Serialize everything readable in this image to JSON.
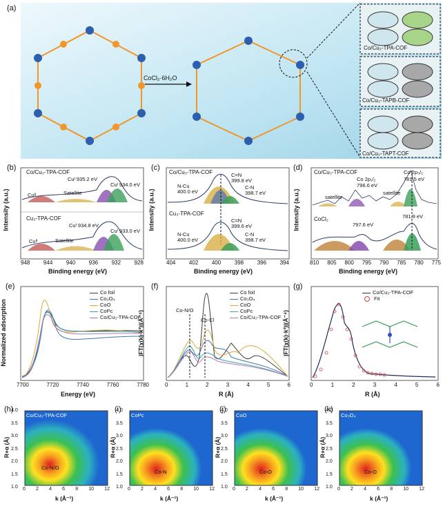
{
  "panels": {
    "a": {
      "letter": "(a)",
      "reagent": "CoCl₂·6H₂O",
      "insets": [
        "Co/Cu₃-TPA-COF",
        "Co/Cu₃-TAPB-COF",
        "Co/Cu₃-TAPT-COF"
      ]
    },
    "b": {
      "letter": "(b)",
      "xlabel": "Binding energy (eV)",
      "ylabel": "Intensity (a.u.)",
      "xticks": [
        "948",
        "944",
        "940",
        "936",
        "932",
        "928"
      ],
      "top": {
        "name": "Co/Cu₃-TPA-COF",
        "cu1": "Cuᴵ 935.2 eV",
        "cu2": "Cuᴵ 934.0 eV",
        "cu3": "Cuᴵᴵ",
        "sat": "Satellite"
      },
      "bottom": {
        "name": "Cu₃-TPA-COF",
        "cu1": "Cuᴵ 934.8 eV",
        "cu2": "Cuᴵ 933.0 eV",
        "cu3": "Cuᴵᴵ",
        "sat": "Satellite"
      }
    },
    "c": {
      "letter": "(c)",
      "xlabel": "Binding energy (eV)",
      "ylabel": "Intensity (a.u.)",
      "xticks": [
        "404",
        "402",
        "400",
        "398",
        "396",
        "394"
      ],
      "top": {
        "name": "Co/Cu₃-TPA-COF",
        "cn1": "C=N",
        "cn1v": "399.8 eV",
        "ncu": "N-Cu",
        "ncuv": "400.0 eV",
        "cn2": "C-N",
        "cn2v": "398.7 eV"
      },
      "bottom": {
        "name": "Cu₃-TPA-COF",
        "cn1": "C=N",
        "cn1v": "399.6 eV",
        "ncu": "N-Cu",
        "ncuv": "400.0 eV",
        "cn2": "C-N",
        "cn2v": "398.7 eV"
      }
    },
    "d": {
      "letter": "(d)",
      "xlabel": "Binding energy (eV)",
      "ylabel": "Intensity (a.u.)",
      "xticks": [
        "810",
        "805",
        "800",
        "795",
        "790",
        "785",
        "780",
        "775"
      ],
      "top": {
        "name": "Co/Cu₃-TPA-COF",
        "co12": "Co 2p₁/₂",
        "co12v": "796.6 eV",
        "co32": "Co 2p₃/₂",
        "co32v": "781.5 eV",
        "sat1": "satellite",
        "sat2": "satellite"
      },
      "bottom": {
        "name": "CoCl₂",
        "v1": "797.6 eV",
        "v2": "781.9 eV"
      }
    },
    "e": {
      "letter": "(e)",
      "xlabel": "Energy (eV)",
      "ylabel": "Normalized adsorption",
      "xticks": [
        "7700",
        "7720",
        "7740",
        "7760",
        "7780"
      ],
      "legend": [
        {
          "name": "Co foil",
          "color": "#3a3a3a"
        },
        {
          "name": "Co₃O₄",
          "color": "#4a6fb5"
        },
        {
          "name": "CoO",
          "color": "#d6a83a"
        },
        {
          "name": "CoPc",
          "color": "#3aa0b8"
        },
        {
          "name": "Co/Cu₃-TPA-COF",
          "color": "#b07ab0"
        }
      ]
    },
    "f": {
      "letter": "(f)",
      "xlabel": "R (Å)",
      "ylabel": "|FT(χ(k)·k³)|(Å⁻⁴)",
      "xticks": [
        "0",
        "1",
        "2",
        "3",
        "4",
        "5",
        "6"
      ],
      "ann1": "Co-N/O",
      "ann2": "Co-Cl",
      "legend": [
        {
          "name": "Co foil",
          "color": "#3a3a3a"
        },
        {
          "name": "Co₃O₄",
          "color": "#4a6fb5"
        },
        {
          "name": "CoO",
          "color": "#d6a83a"
        },
        {
          "name": "CoPc",
          "color": "#3aa0b8"
        },
        {
          "name": "Co/Cu₃-TPA-COF",
          "color": "#b07ab0"
        }
      ]
    },
    "g": {
      "letter": "(g)",
      "xlabel": "R (Å)",
      "ylabel": "|FT(χ(k)·k³)|(Å⁻⁴)",
      "xticks": [
        "0",
        "1",
        "2",
        "3",
        "4",
        "5",
        "6"
      ],
      "legend": [
        {
          "name": "Co/Cu₃-TPA-COF",
          "color": "#1f2a5a"
        },
        {
          "name": "Fit",
          "color": "#d04040"
        }
      ]
    },
    "wt": [
      {
        "letter": "(h)",
        "title": "Co/Cu₃-TPA-COF",
        "peak": "Co-N/O"
      },
      {
        "letter": "(i)",
        "title": "CoPc",
        "peak": "Co-N"
      },
      {
        "letter": "(j)",
        "title": "CoO",
        "peak": "Co-O"
      },
      {
        "letter": "(k)",
        "title": "Co₃O₄",
        "peak": "Co-O"
      }
    ],
    "wt_axes": {
      "xlabel": "k (Å⁻¹)",
      "ylabel": "R+α (Å)",
      "xticks": [
        "0",
        "2",
        "4",
        "6",
        "8",
        "10",
        "12"
      ],
      "yticks": [
        "1.0",
        "1.5",
        "2.0",
        "2.5",
        "3.0",
        "3.5",
        "4.0"
      ]
    }
  }
}
